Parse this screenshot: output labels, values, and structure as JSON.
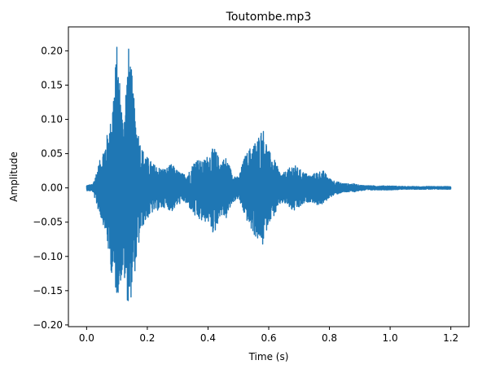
{
  "chart_data": {
    "type": "line",
    "title": "Toutombe.mp3",
    "xlabel": "Time (s)",
    "ylabel": "Amplitude",
    "xlim": [
      -0.06,
      1.26
    ],
    "ylim": [
      -0.2025,
      0.235
    ],
    "xticks": [
      0.0,
      0.2,
      0.4,
      0.6,
      0.8,
      1.0,
      1.2
    ],
    "xtick_labels": [
      "0.0",
      "0.2",
      "0.4",
      "0.6",
      "0.8",
      "1.0",
      "1.2"
    ],
    "yticks": [
      -0.2,
      -0.15,
      -0.1,
      -0.05,
      0.0,
      0.05,
      0.1,
      0.15,
      0.2
    ],
    "ytick_labels": [
      "−0.20",
      "−0.15",
      "−0.10",
      "−0.05",
      "0.00",
      "0.05",
      "0.10",
      "0.15",
      "0.20"
    ],
    "grid": false,
    "legend": false,
    "line_color": "#1f77b4",
    "series": [
      {
        "x": [
          0.0,
          0.02,
          0.04,
          0.06,
          0.08,
          0.1,
          0.12,
          0.14,
          0.16,
          0.18,
          0.2,
          0.22,
          0.24,
          0.26,
          0.28,
          0.3,
          0.32,
          0.34,
          0.36,
          0.38,
          0.4,
          0.42,
          0.44,
          0.46,
          0.48,
          0.5,
          0.52,
          0.54,
          0.56,
          0.58,
          0.6,
          0.62,
          0.64,
          0.66,
          0.68,
          0.7,
          0.72,
          0.74,
          0.76,
          0.78,
          0.8,
          0.82,
          0.84,
          0.86,
          0.88,
          0.9,
          0.95,
          1.0,
          1.05,
          1.1,
          1.15,
          1.2
        ],
        "upper": [
          0.004,
          0.005,
          0.035,
          0.065,
          0.1,
          0.21,
          0.1,
          0.215,
          0.11,
          0.06,
          0.045,
          0.035,
          0.03,
          0.028,
          0.035,
          0.025,
          0.02,
          0.025,
          0.045,
          0.038,
          0.048,
          0.06,
          0.04,
          0.045,
          0.022,
          0.015,
          0.045,
          0.06,
          0.07,
          0.09,
          0.055,
          0.04,
          0.02,
          0.025,
          0.035,
          0.028,
          0.022,
          0.018,
          0.024,
          0.025,
          0.014,
          0.01,
          0.007,
          0.006,
          0.006,
          0.004,
          0.003,
          0.003,
          0.002,
          0.002,
          0.002,
          0.002
        ],
        "lower": [
          -0.004,
          -0.005,
          -0.035,
          -0.06,
          -0.12,
          -0.16,
          -0.125,
          -0.18,
          -0.12,
          -0.06,
          -0.045,
          -0.035,
          -0.032,
          -0.028,
          -0.035,
          -0.025,
          -0.02,
          -0.03,
          -0.045,
          -0.05,
          -0.05,
          -0.07,
          -0.04,
          -0.045,
          -0.022,
          -0.015,
          -0.04,
          -0.06,
          -0.075,
          -0.085,
          -0.05,
          -0.04,
          -0.022,
          -0.025,
          -0.035,
          -0.03,
          -0.022,
          -0.02,
          -0.025,
          -0.024,
          -0.014,
          -0.01,
          -0.007,
          -0.006,
          -0.006,
          -0.004,
          -0.003,
          -0.003,
          -0.002,
          -0.002,
          -0.002,
          -0.002
        ]
      }
    ]
  }
}
